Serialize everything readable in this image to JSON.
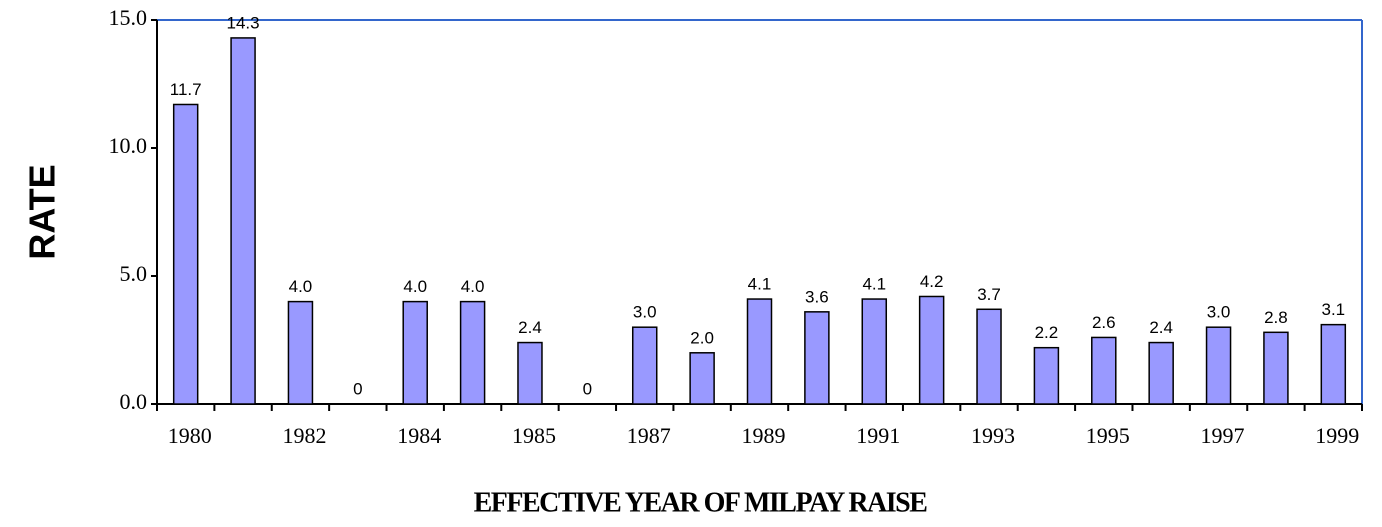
{
  "chart_data": {
    "type": "bar",
    "x_label": "EFFECTIVE YEAR OF MILPAY RAISE",
    "y_label": "RATE",
    "categories": [
      "1980",
      null,
      "1982",
      null,
      "1984",
      null,
      "1985",
      null,
      "1987",
      null,
      "1989",
      null,
      "1991",
      null,
      "1993",
      null,
      "1995",
      null,
      "1997",
      null,
      "1999"
    ],
    "values": [
      11.7,
      14.3,
      4.0,
      0,
      4.0,
      4.0,
      2.4,
      0,
      3.0,
      2.0,
      4.1,
      3.6,
      4.1,
      4.2,
      3.7,
      2.2,
      2.6,
      2.4,
      3.0,
      2.8,
      3.1
    ],
    "value_labels": [
      "11.7",
      "14.3",
      "4.0",
      "0",
      "4.0",
      "4.0",
      "2.4",
      "0",
      "3.0",
      "2.0",
      "4.1",
      "3.6",
      "4.1",
      "4.2",
      "3.7",
      "2.2",
      "2.6",
      "2.4",
      "3.0",
      "2.8",
      "3.1"
    ],
    "color": "#9999ff",
    "ylim": [
      0,
      15
    ],
    "yticks": [
      {
        "value": 0,
        "label": "0.0"
      },
      {
        "value": 5,
        "label": "5.0"
      },
      {
        "value": 10,
        "label": "10.0"
      },
      {
        "value": 15,
        "label": "15.0"
      }
    ],
    "grid": false
  }
}
